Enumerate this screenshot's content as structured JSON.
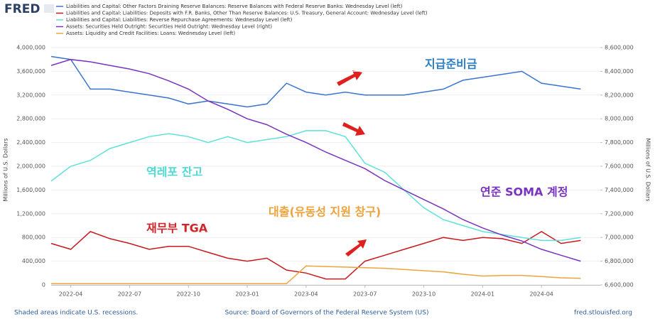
{
  "logo": "FRED",
  "footer": {
    "left": "Shaded areas indicate U.S. recessions.",
    "center": "Source: Board of Governors of the Federal Reserve System (US)",
    "right": "fred.stlouisfed.org"
  },
  "chart_data": {
    "type": "line",
    "y_label": "Millions of U.S. Dollars",
    "y2_label": "Millions of U.S. Dollars",
    "x": [
      "2022-03",
      "2022-04",
      "2022-05",
      "2022-06",
      "2022-07",
      "2022-08",
      "2022-09",
      "2022-10",
      "2022-11",
      "2022-12",
      "2023-01",
      "2023-02",
      "2023-03",
      "2023-04",
      "2023-05",
      "2023-06",
      "2023-07",
      "2023-08",
      "2023-09",
      "2023-10",
      "2023-11",
      "2023-12",
      "2024-01",
      "2024-02",
      "2024-03",
      "2024-04",
      "2024-05",
      "2024-06"
    ],
    "xlim": [
      "2022-03",
      "2024-07"
    ],
    "xticks": [
      "2022-04",
      "2022-07",
      "2022-10",
      "2023-01",
      "2023-04",
      "2023-07",
      "2023-10",
      "2024-01",
      "2024-04"
    ],
    "ylim": [
      0,
      4000000
    ],
    "yticks": [
      0,
      {
        "value": 400000,
        "label": "400,000"
      },
      {
        "value": 800000,
        "label": "800,000"
      },
      {
        "value": 1200000,
        "label": "1,200,000"
      },
      {
        "value": 1600000,
        "label": "1,600,000"
      },
      {
        "value": 2000000,
        "label": "2,000,000"
      },
      {
        "value": 2400000,
        "label": "2,400,000"
      },
      {
        "value": 2800000,
        "label": "2,800,000"
      },
      {
        "value": 3200000,
        "label": "3,200,000"
      },
      {
        "value": 3600000,
        "label": "3,600,000"
      },
      {
        "value": 4000000,
        "label": "4,000,000"
      }
    ],
    "y2lim": [
      6600000,
      8600000
    ],
    "y2ticks": [
      {
        "value": 6600000,
        "label": "6,600,000"
      },
      {
        "value": 6800000,
        "label": "6,800,000"
      },
      {
        "value": 7000000,
        "label": "7,000,000"
      },
      {
        "value": 7200000,
        "label": "7,200,000"
      },
      {
        "value": 7400000,
        "label": "7,400,000"
      },
      {
        "value": 7600000,
        "label": "7,600,000"
      },
      {
        "value": 7800000,
        "label": "7,800,000"
      },
      {
        "value": 8000000,
        "label": "8,000,000"
      },
      {
        "value": 8200000,
        "label": "8,200,000"
      },
      {
        "value": 8400000,
        "label": "8,400,000"
      },
      {
        "value": 8600000,
        "label": "8,600,000"
      }
    ],
    "grid": true,
    "series": [
      {
        "name": "Liabilities and Capital: Other Factors Draining Reserve Balances: Reserve Balances with Federal Reserve Banks: Wednesday Level (left)",
        "color": "#3a74cf",
        "values": [
          3850000,
          3800000,
          3300000,
          3300000,
          3250000,
          3200000,
          3150000,
          3050000,
          3100000,
          3050000,
          3000000,
          3050000,
          3400000,
          3250000,
          3200000,
          3250000,
          3200000,
          3200000,
          3200000,
          3250000,
          3300000,
          3450000,
          3500000,
          3550000,
          3600000,
          3400000,
          3350000,
          3300000
        ]
      },
      {
        "name": "Liabilities and Capital: Liabilities: Deposits with F.R. Banks, Other Than Reserve Balances: U.S. Treasury, General Account: Wednesday Level (left)",
        "color": "#c8191e",
        "values": [
          700000,
          600000,
          900000,
          780000,
          700000,
          600000,
          650000,
          650000,
          550000,
          450000,
          400000,
          450000,
          250000,
          200000,
          100000,
          100000,
          400000,
          500000,
          600000,
          700000,
          800000,
          750000,
          800000,
          780000,
          700000,
          900000,
          700000,
          750000
        ]
      },
      {
        "name": "Liabilities and Capital: Liabilities: Reverse Repurchase Agreements: Wednesday Level (left)",
        "color": "#5fe1da",
        "values": [
          1750000,
          2000000,
          2100000,
          2300000,
          2400000,
          2500000,
          2550000,
          2500000,
          2400000,
          2500000,
          2400000,
          2450000,
          2500000,
          2600000,
          2600000,
          2500000,
          2050000,
          1900000,
          1600000,
          1300000,
          1100000,
          1000000,
          900000,
          850000,
          800000,
          750000,
          750000,
          800000
        ]
      },
      {
        "name": "Assets: Securities Held Outright: Securities Held Outright: Wednesday Level (right)",
        "color": "#7a33bf",
        "axis": "y2",
        "values": [
          8450000,
          8500000,
          8480000,
          8450000,
          8420000,
          8380000,
          8320000,
          8250000,
          8150000,
          8080000,
          8000000,
          7950000,
          7870000,
          7800000,
          7720000,
          7650000,
          7580000,
          7480000,
          7400000,
          7320000,
          7240000,
          7150000,
          7080000,
          7020000,
          6970000,
          6900000,
          6850000,
          6800000
        ]
      },
      {
        "name": "Assets: Liquidity and Credit Facilities: Loans: Wednesday Level (left)",
        "color": "#eaa53c",
        "values": [
          20000,
          20000,
          20000,
          20000,
          20000,
          20000,
          20000,
          20000,
          20000,
          20000,
          20000,
          20000,
          20000,
          320000,
          310000,
          300000,
          290000,
          280000,
          260000,
          240000,
          220000,
          180000,
          150000,
          160000,
          160000,
          140000,
          120000,
          110000
        ]
      }
    ],
    "annotations": [
      {
        "text": "지급준비금",
        "color": "#2b7fc6"
      },
      {
        "text": "역레포 잔고",
        "color": "#4fd9d2"
      },
      {
        "text": "연준 SOMA 계정",
        "color": "#7a33bf"
      },
      {
        "text": "재무부 TGA",
        "color": "#d0262b"
      },
      {
        "text": "대출(유동성 지원 창구)",
        "color": "#eea33a"
      }
    ]
  }
}
